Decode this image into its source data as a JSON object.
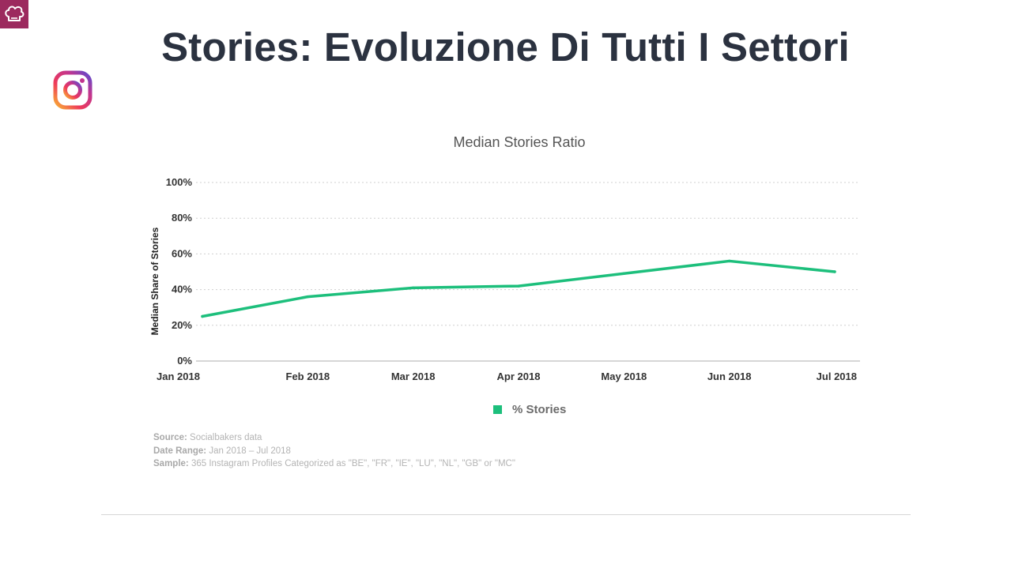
{
  "slide": {
    "title": "Stories: Evoluzione Di Tutti I Settori"
  },
  "icons": {
    "brand": "chef-hat-icon",
    "social": "instagram-icon"
  },
  "colors": {
    "brand_badge": "#9c2a5e",
    "series": "#1dbf7c",
    "title": "#2b3240"
  },
  "chart_data": {
    "type": "line",
    "title": "Median Stories Ratio",
    "xlabel": "",
    "ylabel": "Median Share of Stories",
    "categories": [
      "Jan 2018",
      "Feb 2018",
      "Mar 2018",
      "Apr 2018",
      "May 2018",
      "Jun 2018",
      "Jul 2018"
    ],
    "series": [
      {
        "name": "% Stories",
        "values": [
          25,
          36,
          41,
          42,
          49,
          56,
          50
        ]
      }
    ],
    "ylim": [
      0,
      100
    ],
    "yticks": [
      "0%",
      "20%",
      "40%",
      "60%",
      "80%",
      "100%"
    ],
    "grid": true,
    "legend": "bottom"
  },
  "source": {
    "source_label": "Source:",
    "source_value": "Socialbakers data",
    "range_label": "Date Range:",
    "range_value": "Jan 2018  – Jul 2018",
    "sample_label": "Sample:",
    "sample_value": "365 Instagram Profiles Categorized as \"BE\", \"FR\", \"IE\", \"LU\", \"NL\", \"GB\" or \"MC\""
  }
}
